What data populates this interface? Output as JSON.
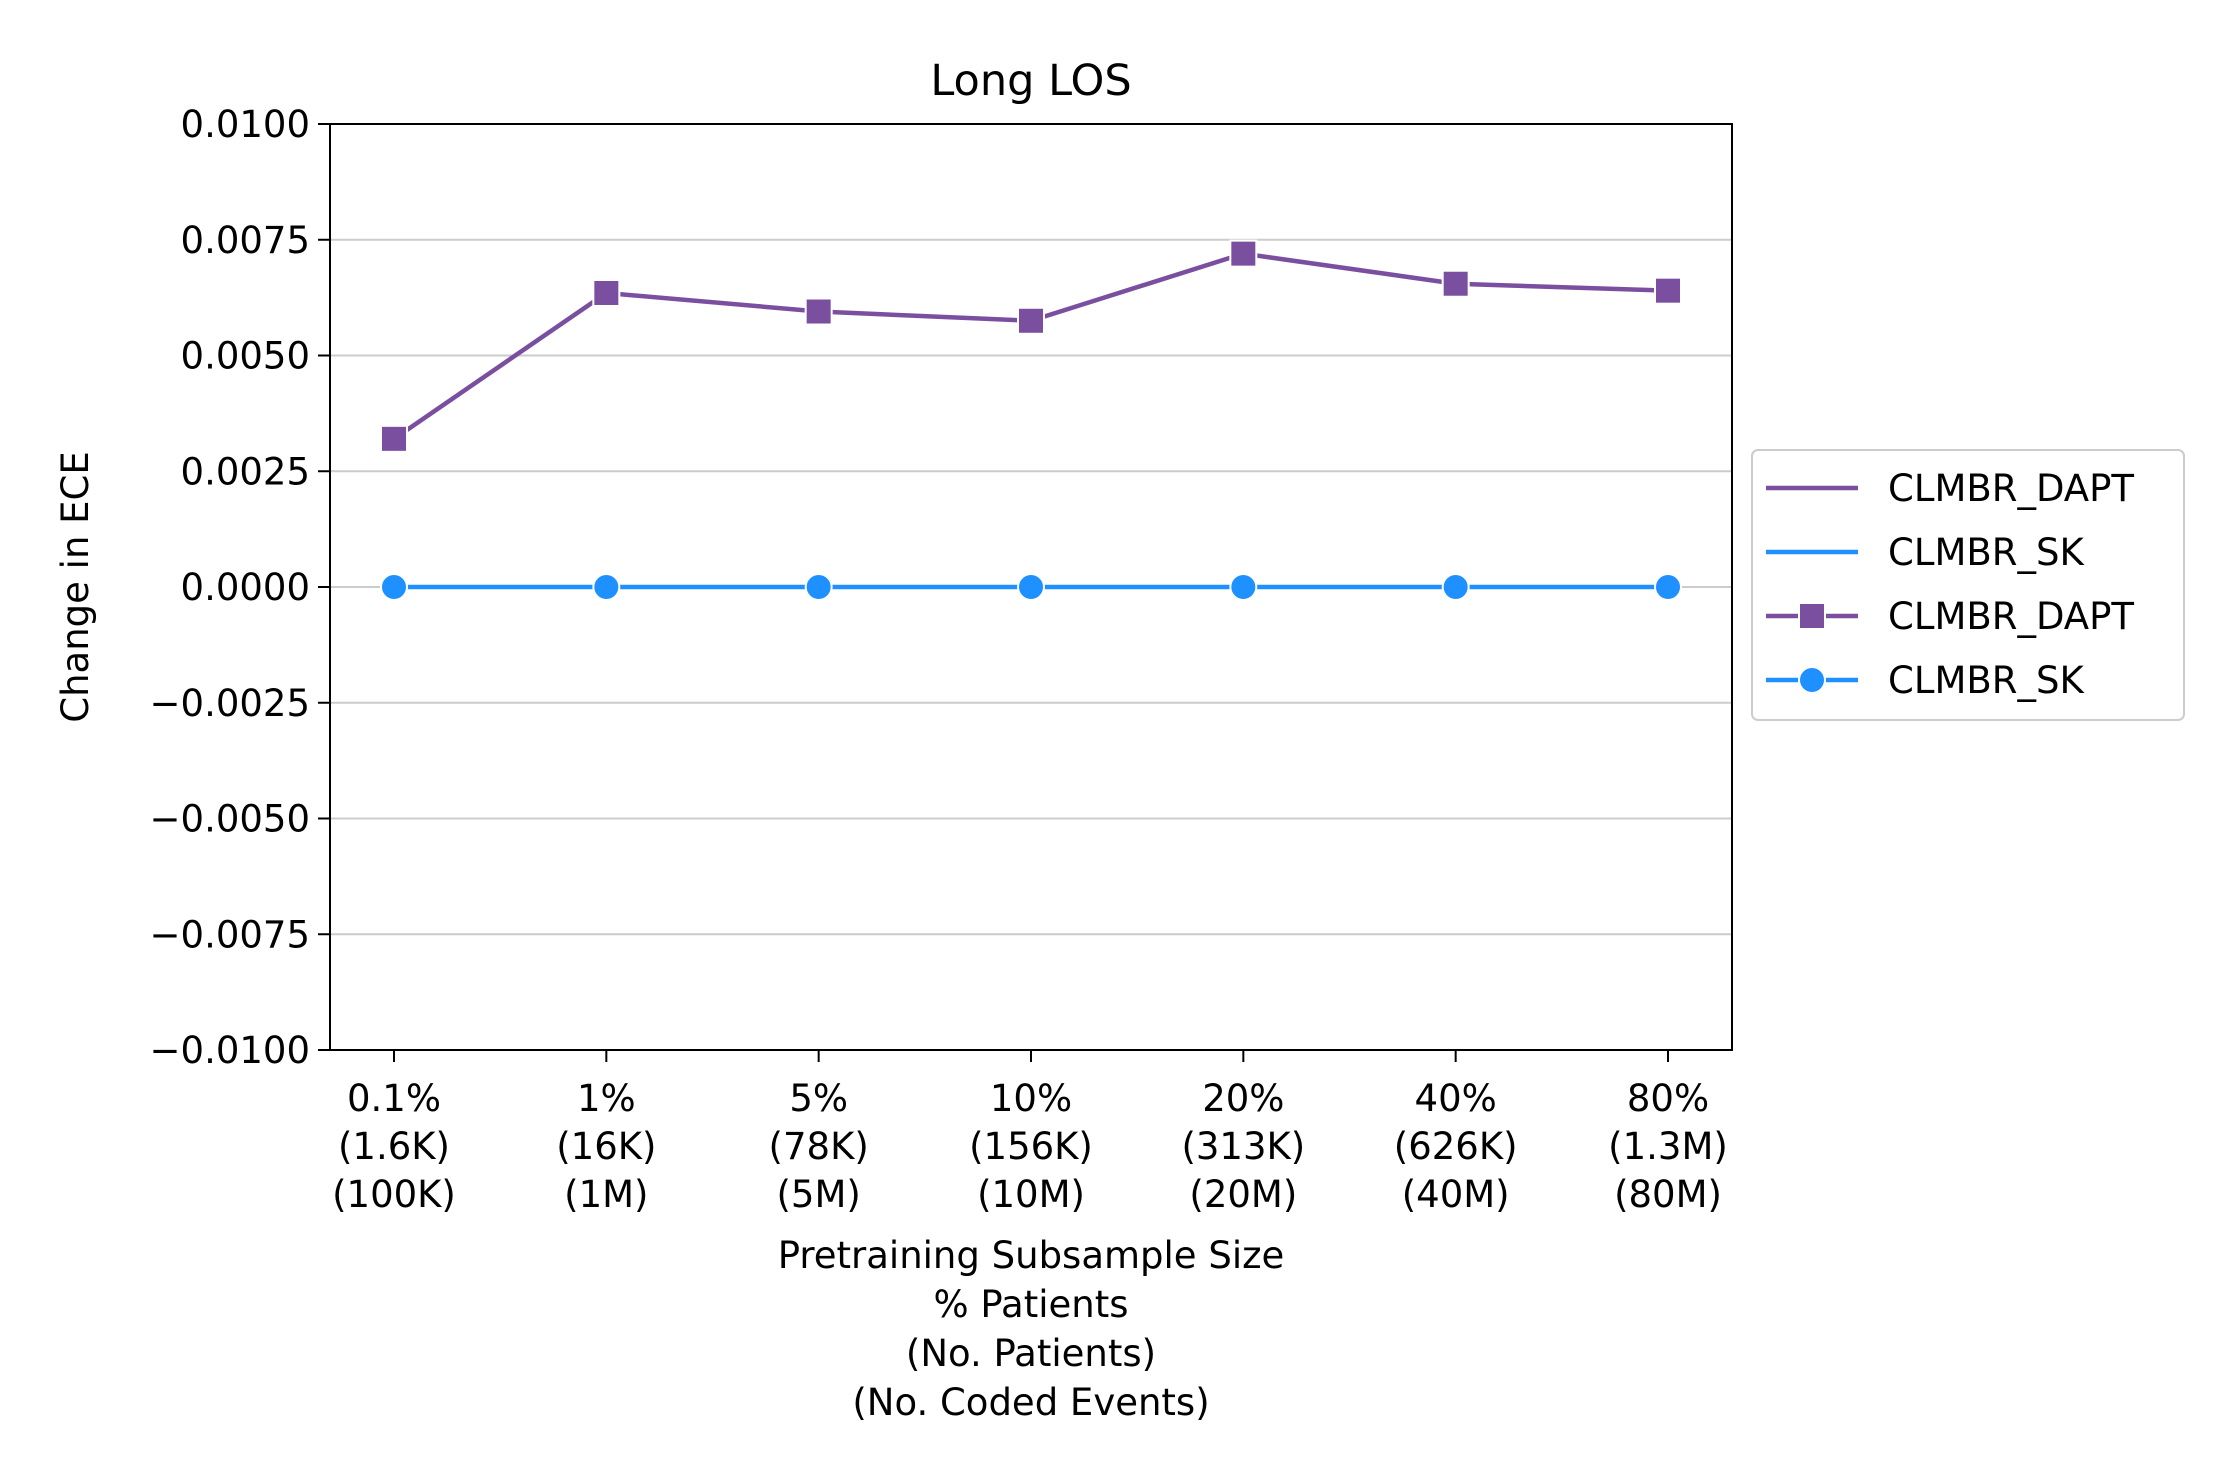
{
  "chart_data": {
    "type": "line",
    "title": "Long LOS",
    "xlabel_lines": [
      "Pretraining Subsample Size",
      "% Patients",
      "(No. Patients)",
      "(No. Coded Events)"
    ],
    "ylabel": "Change in ECE",
    "categories": [
      [
        "0.1%",
        "(1.6K)",
        "(100K)"
      ],
      [
        "1%",
        "(16K)",
        "(1M)"
      ],
      [
        "5%",
        "(78K)",
        "(5M)"
      ],
      [
        "10%",
        "(156K)",
        "(10M)"
      ],
      [
        "20%",
        "(313K)",
        "(20M)"
      ],
      [
        "40%",
        "(626K)",
        "(40M)"
      ],
      [
        "80%",
        "(1.3M)",
        "(80M)"
      ]
    ],
    "ylim": [
      -0.01,
      0.01
    ],
    "yticks": [
      -0.01,
      -0.0075,
      -0.005,
      -0.0025,
      0.0,
      0.0025,
      0.005,
      0.0075,
      0.01
    ],
    "ytick_labels": [
      "−0.0100",
      "−0.0075",
      "−0.0050",
      "−0.0025",
      "0.0000",
      "0.0025",
      "0.0050",
      "0.0075",
      "0.0100"
    ],
    "grid": "horizontal",
    "legend_position": "outside right",
    "series": [
      {
        "name": "CLMBR_DAPT",
        "color": "#7b4fa0",
        "marker": "square",
        "values": [
          0.0032,
          0.00635,
          0.00595,
          0.00575,
          0.0072,
          0.00655,
          0.0064
        ]
      },
      {
        "name": "CLMBR_SK",
        "color": "#1e90ff",
        "marker": "circle",
        "values": [
          0.0,
          0.0,
          0.0,
          0.0,
          0.0,
          0.0,
          0.0
        ]
      }
    ],
    "legend": [
      {
        "label": "CLMBR_DAPT",
        "color": "#7b4fa0",
        "marker": "none"
      },
      {
        "label": "CLMBR_SK",
        "color": "#1e90ff",
        "marker": "none"
      },
      {
        "label": "CLMBR_DAPT",
        "color": "#7b4fa0",
        "marker": "square"
      },
      {
        "label": "CLMBR_SK",
        "color": "#1e90ff",
        "marker": "circle"
      }
    ]
  }
}
